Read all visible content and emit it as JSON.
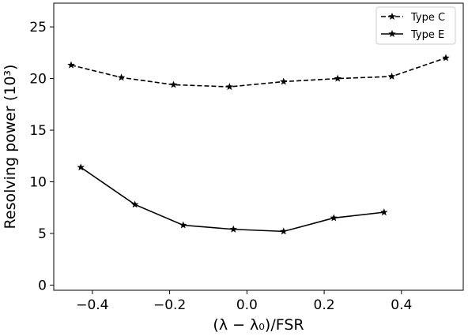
{
  "chart_data": {
    "type": "line",
    "xlabel": "(λ − λ₀)/FSR",
    "ylabel": "Resolving power (10³)",
    "xlim": [
      -0.5,
      0.56
    ],
    "ylim": [
      -0.5,
      27.3
    ],
    "x_ticks": [
      -0.4,
      -0.2,
      0.0,
      0.2,
      0.4
    ],
    "x_tick_labels": [
      "−0.4",
      "−0.2",
      "0.0",
      "0.2",
      "0.4"
    ],
    "y_ticks": [
      0,
      5,
      10,
      15,
      20,
      25
    ],
    "y_tick_labels": [
      "0",
      "5",
      "10",
      "15",
      "20",
      "25"
    ],
    "grid": false,
    "legend": "top-right",
    "series": [
      {
        "name": "Type C",
        "style": "dashed",
        "marker": "star",
        "color": "#000000",
        "x": [
          -0.455,
          -0.325,
          -0.19,
          -0.045,
          0.095,
          0.235,
          0.375,
          0.515
        ],
        "y": [
          21.3,
          20.1,
          19.4,
          19.2,
          19.7,
          20.0,
          20.2,
          22.0
        ]
      },
      {
        "name": "Type E",
        "style": "solid",
        "marker": "star",
        "color": "#000000",
        "x": [
          -0.43,
          -0.29,
          -0.165,
          -0.035,
          0.095,
          0.225,
          0.355
        ],
        "y": [
          11.4,
          7.8,
          5.8,
          5.4,
          5.2,
          6.5,
          7.05
        ]
      }
    ]
  }
}
